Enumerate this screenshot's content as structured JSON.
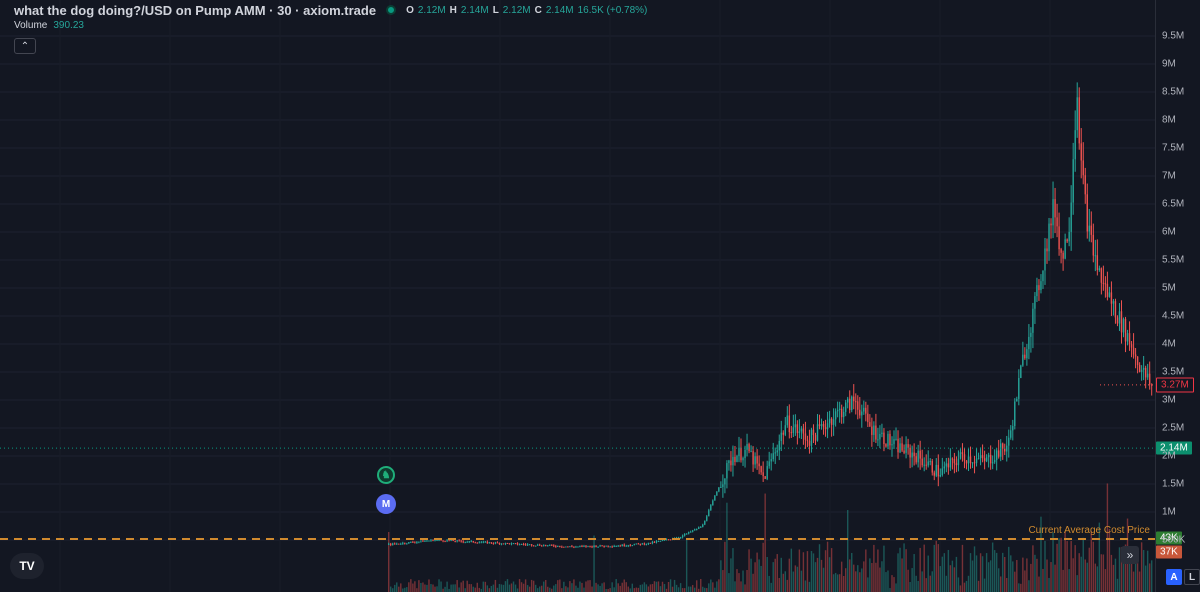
{
  "header": {
    "title": "what the dog doing?/USD on Pump AMM · 30 · axiom.trade",
    "ohlc": [
      {
        "key": "O",
        "value": "2.12M"
      },
      {
        "key": "H",
        "value": "2.14M"
      },
      {
        "key": "L",
        "value": "2.12M"
      },
      {
        "key": "C",
        "value": "2.14M"
      }
    ],
    "change": "16.5K (+0.78%)"
  },
  "volume": {
    "label": "Volume",
    "value": "390.23"
  },
  "collapse_icon": "chevron-up-icon",
  "collapse_glyph": "⌃",
  "markers": {
    "badge_glyph": "♞",
    "m_label": "M"
  },
  "price_axis": {
    "ticks": [
      "9.5M",
      "9M",
      "8.5M",
      "8M",
      "7.5M",
      "7M",
      "6.5M",
      "6M",
      "5.5M",
      "5M",
      "4.5M",
      "4M",
      "3.5M",
      "3M",
      "2.5M",
      "2M",
      "1.5M",
      "1M",
      "500K"
    ],
    "last_price": "3.27M",
    "ref_price": "2.14M",
    "tag_green": "43K",
    "tag_orange": "37K",
    "bottom_partial": "0"
  },
  "overlay": {
    "cost_label": "Current Average Cost Price"
  },
  "controls": {
    "logo": "TV",
    "scroll_glyph": "»",
    "scale_a": "A",
    "scale_l": "L"
  },
  "colors": {
    "background": "#131722",
    "up": "#26a69a",
    "down": "#ef5350",
    "cost_line": "#d08a2e",
    "ref_line": "#089981",
    "accent": "#2962ff"
  },
  "chart_data": {
    "type": "candlestick",
    "title": "what the dog doing?/USD on Pump AMM · 30 · axiom.trade",
    "interval": "30",
    "ylim": [
      0,
      9.6
    ],
    "y_unit": "M",
    "price_path": [
      [
        0,
        0.42
      ],
      [
        0.06,
        0.5
      ],
      [
        0.12,
        0.46
      ],
      [
        0.18,
        0.42
      ],
      [
        0.24,
        0.38
      ],
      [
        0.3,
        0.4
      ],
      [
        0.34,
        0.44
      ],
      [
        0.38,
        0.55
      ],
      [
        0.41,
        0.75
      ],
      [
        0.43,
        1.4
      ],
      [
        0.45,
        2.0
      ],
      [
        0.47,
        2.1
      ],
      [
        0.49,
        1.6
      ],
      [
        0.52,
        2.6
      ],
      [
        0.55,
        2.3
      ],
      [
        0.58,
        2.7
      ],
      [
        0.61,
        3.0
      ],
      [
        0.63,
        2.5
      ],
      [
        0.66,
        2.2
      ],
      [
        0.69,
        2.0
      ],
      [
        0.72,
        1.7
      ],
      [
        0.75,
        2.0
      ],
      [
        0.78,
        1.9
      ],
      [
        0.81,
        2.2
      ],
      [
        0.83,
        3.8
      ],
      [
        0.845,
        4.7
      ],
      [
        0.86,
        5.8
      ],
      [
        0.87,
        6.5
      ],
      [
        0.88,
        5.5
      ],
      [
        0.89,
        6.2
      ],
      [
        0.895,
        7.5
      ],
      [
        0.9,
        8.5
      ],
      [
        0.905,
        7.2
      ],
      [
        0.915,
        6.0
      ],
      [
        0.93,
        5.2
      ],
      [
        0.95,
        4.6
      ],
      [
        0.97,
        4.0
      ],
      [
        0.985,
        3.5
      ],
      [
        1.0,
        3.2
      ]
    ],
    "last_price": "3.27M",
    "ref_price": "2.14M",
    "cost_line_label": "Current Average Cost Price"
  }
}
